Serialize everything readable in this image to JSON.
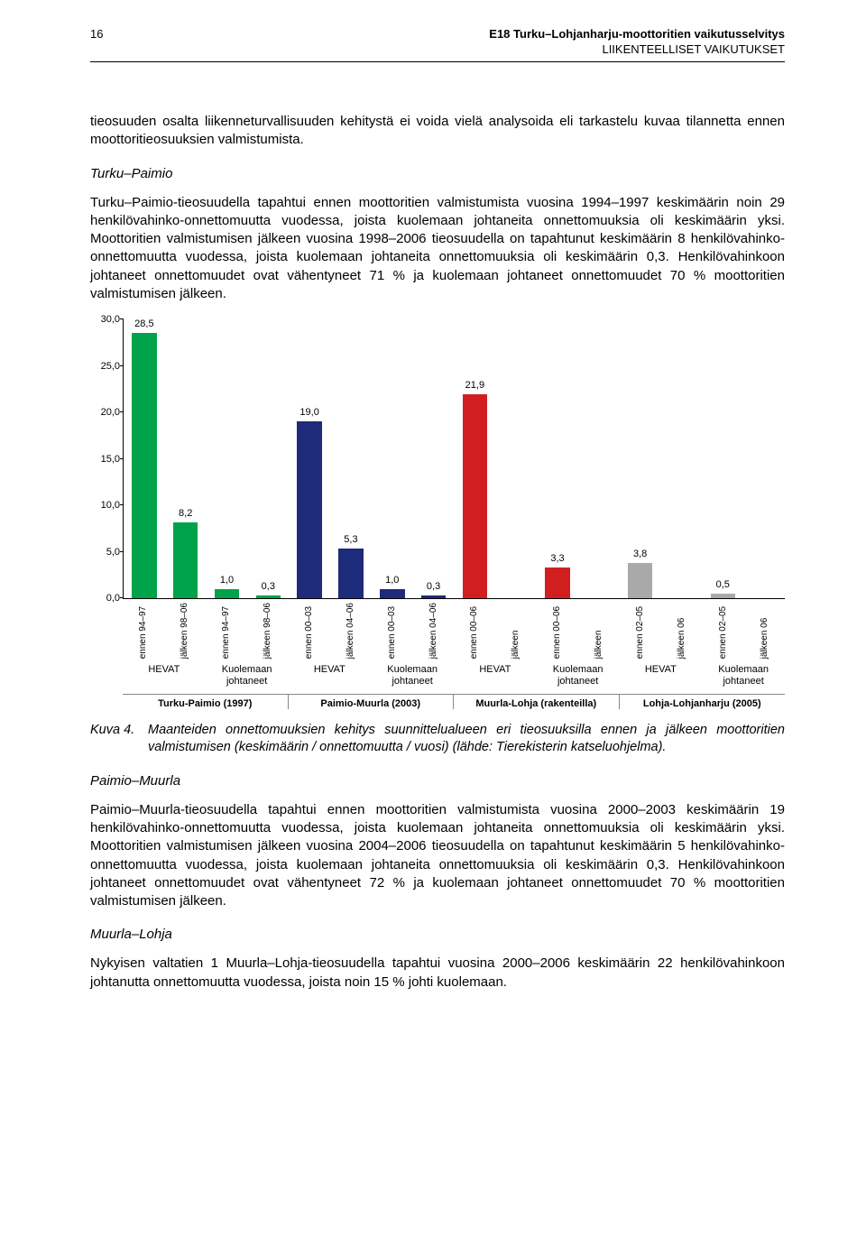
{
  "header": {
    "page_num": "16",
    "title": "E18 Turku–Lohjanharju-moottoritien vaikutusselvitys",
    "subtitle": "LIIKENTEELLISET VAIKUTUKSET"
  },
  "para_intro": "tieosuuden osalta liikenneturvallisuuden kehitystä ei voida vielä analysoida eli tarkastelu kuvaa tilannetta ennen moottoritieosuuksien valmistumista.",
  "heading_tp": "Turku–Paimio",
  "para_tp": "Turku–Paimio-tieosuudella tapahtui ennen moottoritien valmistumista vuosina 1994–1997 keskimäärin noin 29 henkilövahinko-onnettomuutta vuodessa, joista kuolemaan johtaneita onnettomuuksia oli keskimäärin yksi. Moottoritien valmistumisen jälkeen vuosina 1998–2006 tieosuudella on tapahtunut keskimäärin 8 henkilövahinko-onnettomuutta vuodessa, joista kuolemaan johtaneita onnettomuuksia oli keskimäärin 0,3. Henkilövahinkoon johtaneet onnettomuudet ovat vähentyneet 71 % ja kuolemaan johtaneet onnettomuudet 70 % moottoritien valmistumisen jälkeen.",
  "chart": {
    "ylim": [
      0,
      30
    ],
    "ytick_step": 5,
    "yticks": [
      "0,0",
      "5,0",
      "10,0",
      "15,0",
      "20,0",
      "25,0",
      "30,0"
    ],
    "colors": {
      "green": "#00a24a",
      "navy": "#1e2a7a",
      "red": "#d11f1f",
      "gray": "#a9a9a9"
    },
    "bars": [
      {
        "label": "28,5",
        "value": 28.5,
        "color": "green",
        "xl": "ennen 94–97"
      },
      {
        "label": "8,2",
        "value": 8.2,
        "color": "green",
        "xl": "jälkeen 98–06"
      },
      {
        "label": "1,0",
        "value": 1.0,
        "color": "green",
        "xl": "ennen 94–97"
      },
      {
        "label": "0,3",
        "value": 0.3,
        "color": "green",
        "xl": "jälkeen 98–06"
      },
      {
        "label": "19,0",
        "value": 19.0,
        "color": "navy",
        "xl": "ennen 00–03"
      },
      {
        "label": "5,3",
        "value": 5.3,
        "color": "navy",
        "xl": "jälkeen 04–06"
      },
      {
        "label": "1,0",
        "value": 1.0,
        "color": "navy",
        "xl": "ennen 00–03"
      },
      {
        "label": "0,3",
        "value": 0.3,
        "color": "navy",
        "xl": "jälkeen 04–06"
      },
      {
        "label": "21,9",
        "value": 21.9,
        "color": "red",
        "xl": "ennen 00–06"
      },
      {
        "label": "",
        "value": 0,
        "color": "red",
        "xl": "jälkeen"
      },
      {
        "label": "3,3",
        "value": 3.3,
        "color": "red",
        "xl": "ennen 00–06"
      },
      {
        "label": "",
        "value": 0,
        "color": "red",
        "xl": "jälkeen"
      },
      {
        "label": "3,8",
        "value": 3.8,
        "color": "gray",
        "xl": "ennen 02–05"
      },
      {
        "label": "",
        "value": 0,
        "color": "gray",
        "xl": "jälkeen 06"
      },
      {
        "label": "0,5",
        "value": 0.5,
        "color": "gray",
        "xl": "ennen 02–05"
      },
      {
        "label": "",
        "value": 0,
        "color": "gray",
        "xl": "jälkeen 06"
      }
    ],
    "groups": [
      {
        "span": 2,
        "label": "HEVAT"
      },
      {
        "span": 2,
        "label": "Kuolemaan johtaneet"
      },
      {
        "span": 2,
        "label": "HEVAT"
      },
      {
        "span": 2,
        "label": "Kuolemaan johtaneet"
      },
      {
        "span": 2,
        "label": "HEVAT"
      },
      {
        "span": 2,
        "label": "Kuolemaan johtaneet"
      },
      {
        "span": 2,
        "label": "HEVAT"
      },
      {
        "span": 2,
        "label": "Kuolemaan johtaneet"
      }
    ],
    "segments": [
      {
        "span": 4,
        "label": "Turku-Paimio (1997)"
      },
      {
        "span": 4,
        "label": "Paimio-Muurla (2003)"
      },
      {
        "span": 4,
        "label": "Muurla-Lohja (rakenteilla)"
      },
      {
        "span": 4,
        "label": "Lohja-Lohjanharju (2005)"
      }
    ]
  },
  "caption": {
    "tag": "Kuva 4.",
    "text": "Maanteiden onnettomuuksien kehitys suunnittelualueen eri tieosuuksilla ennen ja jälkeen moottoritien valmistumisen (keskimäärin / onnettomuutta / vuosi) (lähde: Tierekisterin katseluohjelma)."
  },
  "heading_pm": "Paimio–Muurla",
  "para_pm": "Paimio–Muurla-tieosuudella tapahtui ennen moottoritien valmistumista vuosina 2000–2003 keskimäärin 19 henkilövahinko-onnettomuutta vuodessa, joista kuolemaan johtaneita onnettomuuksia oli keskimäärin yksi. Moottoritien valmistumisen jälkeen vuosina 2004–2006 tieosuudella on tapahtunut keskimäärin 5 henkilövahinko-onnettomuutta vuodessa, joista kuolemaan johtaneita onnettomuuksia oli keskimäärin 0,3. Henkilövahinkoon johtaneet onnettomuudet ovat vähentyneet 72 % ja kuolemaan johtaneet onnettomuudet 70 % moottoritien valmistumisen jälkeen.",
  "heading_ml": "Muurla–Lohja",
  "para_ml": "Nykyisen valtatien 1 Muurla–Lohja-tieosuudella tapahtui vuosina 2000–2006 keskimäärin 22 henkilövahinkoon johtanutta onnettomuutta vuodessa, joista noin 15 % johti kuolemaan."
}
